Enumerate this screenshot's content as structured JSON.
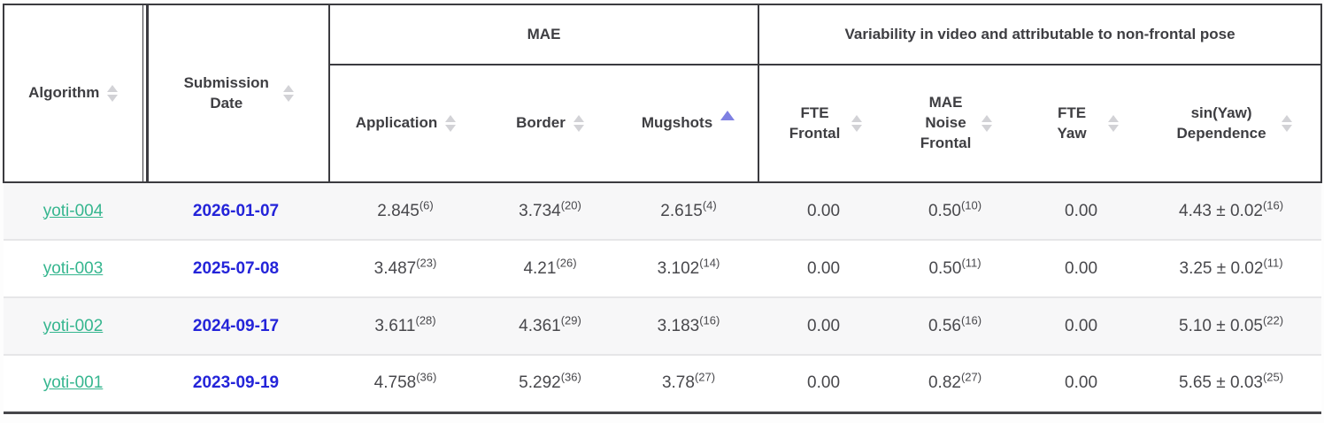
{
  "colors": {
    "header_border": "#3b3b40",
    "row_separator": "#e6e6e8",
    "stripe_bg": "#f7f7f8",
    "link": "#36b68f",
    "date": "#2424d9",
    "sort_inactive": "#d2d2d6",
    "sort_active": "#7e80e2",
    "header_text": "#3e3e42",
    "value_text": "#48484c"
  },
  "table": {
    "groups": {
      "mae": "MAE",
      "variability": "Variability in video and attributable to non-frontal pose"
    },
    "columns": {
      "algorithm": {
        "label": "Algorithm",
        "sort": "none"
      },
      "subdate": {
        "label": "Submission Date",
        "sort": "none"
      },
      "application": {
        "label": "Application",
        "sort": "none"
      },
      "border": {
        "label": "Border",
        "sort": "none"
      },
      "mugshots": {
        "label": "Mugshots",
        "sort": "ascending"
      },
      "fte_frontal": {
        "label": "FTE Frontal",
        "sort": "none"
      },
      "mae_noise": {
        "label": "MAE Noise Frontal",
        "sort": "none"
      },
      "fte_yaw": {
        "label": "FTE Yaw",
        "sort": "none"
      },
      "sinyaw": {
        "label": "sin(Yaw) Dependence",
        "sort": "none"
      }
    },
    "rows": [
      {
        "algorithm": "yoti-004",
        "subdate": "2026-01-07",
        "application": {
          "value": "2.845",
          "sup": "(6)"
        },
        "border": {
          "value": "3.734",
          "sup": "(20)"
        },
        "mugshots": {
          "value": "2.615",
          "sup": "(4)"
        },
        "fte_frontal": {
          "value": "0.00",
          "sup": ""
        },
        "mae_noise": {
          "value": "0.50",
          "sup": "(10)"
        },
        "fte_yaw": {
          "value": "0.00",
          "sup": ""
        },
        "sinyaw": {
          "value": "4.43 ± 0.02",
          "sup": "(16)"
        }
      },
      {
        "algorithm": "yoti-003",
        "subdate": "2025-07-08",
        "application": {
          "value": "3.487",
          "sup": "(23)"
        },
        "border": {
          "value": "4.21",
          "sup": "(26)"
        },
        "mugshots": {
          "value": "3.102",
          "sup": "(14)"
        },
        "fte_frontal": {
          "value": "0.00",
          "sup": ""
        },
        "mae_noise": {
          "value": "0.50",
          "sup": "(11)"
        },
        "fte_yaw": {
          "value": "0.00",
          "sup": ""
        },
        "sinyaw": {
          "value": "3.25 ± 0.02",
          "sup": "(11)"
        }
      },
      {
        "algorithm": "yoti-002",
        "subdate": "2024-09-17",
        "application": {
          "value": "3.611",
          "sup": "(28)"
        },
        "border": {
          "value": "4.361",
          "sup": "(29)"
        },
        "mugshots": {
          "value": "3.183",
          "sup": "(16)"
        },
        "fte_frontal": {
          "value": "0.00",
          "sup": ""
        },
        "mae_noise": {
          "value": "0.56",
          "sup": "(16)"
        },
        "fte_yaw": {
          "value": "0.00",
          "sup": ""
        },
        "sinyaw": {
          "value": "5.10 ± 0.05",
          "sup": "(22)"
        }
      },
      {
        "algorithm": "yoti-001",
        "subdate": "2023-09-19",
        "application": {
          "value": "4.758",
          "sup": "(36)"
        },
        "border": {
          "value": "5.292",
          "sup": "(36)"
        },
        "mugshots": {
          "value": "3.78",
          "sup": "(27)"
        },
        "fte_frontal": {
          "value": "0.00",
          "sup": ""
        },
        "mae_noise": {
          "value": "0.82",
          "sup": "(27)"
        },
        "fte_yaw": {
          "value": "0.00",
          "sup": ""
        },
        "sinyaw": {
          "value": "5.65 ± 0.03",
          "sup": "(25)"
        }
      }
    ]
  }
}
